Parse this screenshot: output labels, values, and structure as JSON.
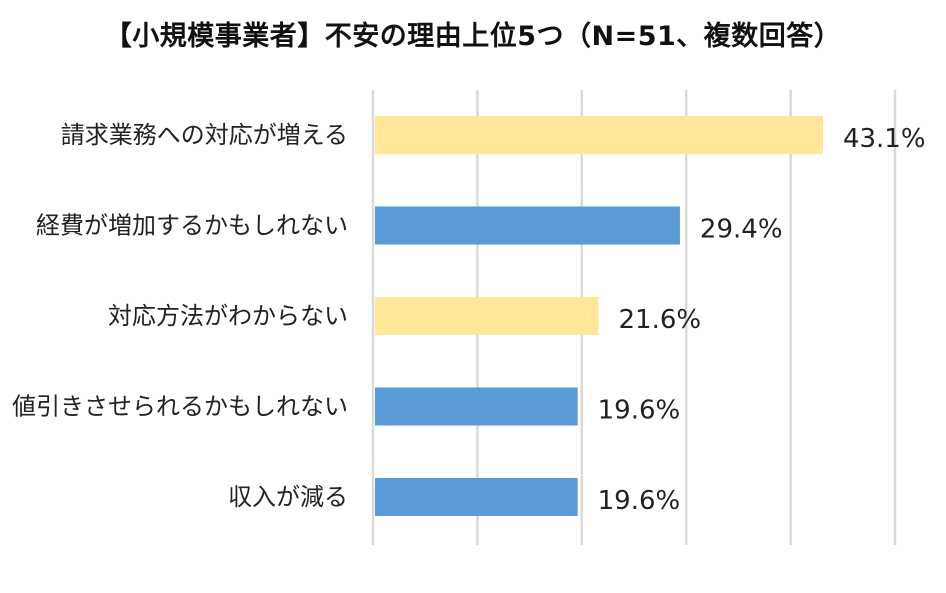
{
  "chart_data": {
    "type": "bar",
    "orientation": "horizontal",
    "title": "【小規模事業者】不安の理由上位5つ（N=51、複数回答）",
    "categories": [
      "請求業務への対応が増える",
      "経費が増加するかもしれない",
      "対応方法がわからない",
      "値引きさせられるかもしれない",
      "収入が減る"
    ],
    "values": [
      43.1,
      29.4,
      21.6,
      19.6,
      19.6
    ],
    "value_labels": [
      "43.1%",
      "29.4%",
      "21.6%",
      "19.6%",
      "19.6%"
    ],
    "bar_colors": [
      "#FFE699",
      "#5B9BD5",
      "#FFE699",
      "#5B9BD5",
      "#5B9BD5"
    ],
    "xlim": [
      0,
      50
    ],
    "grid_interval": 10,
    "grid": true,
    "legend": "none",
    "value_unit": "%"
  }
}
